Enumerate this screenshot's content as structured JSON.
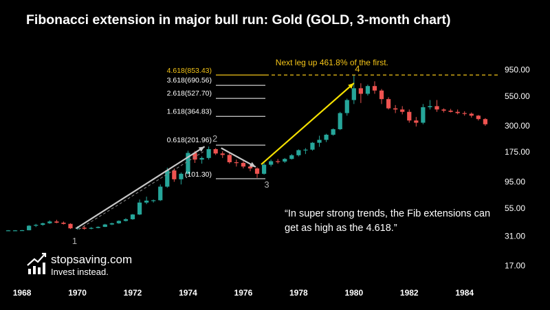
{
  "title": "Fibonacci extension in major bull run: Gold (GOLD, 3-month chart)",
  "brand": {
    "name": "stopsaving.com",
    "tagline": "Invest instead."
  },
  "quote": "“In super strong trends, the Fib extensions can get as high as the 4.618.”",
  "colors": {
    "background": "#000000",
    "up": "#26a69a",
    "down": "#ef5350",
    "arrow_white": "#c8c8c8",
    "arrow_yellow": "#f5e000",
    "target": "#f5c518"
  },
  "chart_data": {
    "type": "candlestick",
    "title": "Fibonacci extension in major bull run: Gold (GOLD, 3-month chart)",
    "y_scale": "log",
    "ylim": [
      14,
      1150
    ],
    "xlim": [
      1967.5,
      1985.3
    ],
    "x_ticks": [
      "1968",
      "1970",
      "1972",
      "1974",
      "1976",
      "1978",
      "1980",
      "1982",
      "1984"
    ],
    "y_ticks": [
      "950.00",
      "550.00",
      "300.00",
      "175.00",
      "95.00",
      "55.00",
      "31.00",
      "17.00"
    ],
    "candles": [
      [
        1967.5,
        35,
        35.2,
        34.8,
        35
      ],
      [
        1967.75,
        35,
        35.2,
        34.8,
        35
      ],
      [
        1968.0,
        35,
        35.3,
        34.8,
        35.1
      ],
      [
        1968.25,
        35.1,
        39,
        35,
        38.5
      ],
      [
        1968.5,
        38.5,
        40,
        37.5,
        39.2
      ],
      [
        1968.75,
        39.2,
        41,
        38.5,
        40.5
      ],
      [
        1969.0,
        40.5,
        43,
        40,
        42
      ],
      [
        1969.25,
        42,
        43.5,
        40.5,
        41
      ],
      [
        1969.5,
        41,
        42,
        39.5,
        40
      ],
      [
        1969.75,
        40,
        40.5,
        36,
        36.5
      ],
      [
        1970.0,
        36.5,
        38,
        35.5,
        37
      ],
      [
        1970.25,
        37,
        38,
        35.5,
        36.2
      ],
      [
        1970.5,
        36.2,
        37.5,
        35.8,
        36.8
      ],
      [
        1970.75,
        36.8,
        38,
        36.5,
        37.6
      ],
      [
        1971.0,
        37.6,
        40,
        37.5,
        39.5
      ],
      [
        1971.25,
        39.5,
        41,
        39,
        40.5
      ],
      [
        1971.5,
        40.5,
        43,
        40,
        42.5
      ],
      [
        1971.75,
        42.5,
        45,
        42,
        44
      ],
      [
        1972.0,
        44,
        49,
        43.5,
        48.5
      ],
      [
        1972.25,
        48.5,
        66,
        48,
        62
      ],
      [
        1972.5,
        62,
        70,
        60,
        64.5
      ],
      [
        1972.75,
        64.5,
        66,
        62,
        65
      ],
      [
        1973.0,
        65,
        90,
        64,
        86
      ],
      [
        1973.25,
        86,
        127,
        84,
        120
      ],
      [
        1973.5,
        120,
        125,
        95,
        100
      ],
      [
        1973.75,
        100,
        115,
        90,
        112
      ],
      [
        1974.0,
        112,
        180,
        110,
        172
      ],
      [
        1974.25,
        172,
        179,
        140,
        150
      ],
      [
        1974.5,
        150,
        160,
        138,
        155
      ],
      [
        1974.75,
        155,
        196,
        150,
        186
      ],
      [
        1975.0,
        186,
        190,
        165,
        170
      ],
      [
        1975.25,
        170,
        178,
        155,
        165
      ],
      [
        1975.5,
        165,
        172,
        138,
        142
      ],
      [
        1975.75,
        142,
        150,
        130,
        140
      ],
      [
        1976.0,
        140,
        145,
        125,
        130
      ],
      [
        1976.25,
        130,
        135,
        118,
        125
      ],
      [
        1976.5,
        125,
        128,
        103,
        112
      ],
      [
        1976.75,
        112,
        140,
        110,
        135
      ],
      [
        1977.0,
        135,
        150,
        130,
        145
      ],
      [
        1977.25,
        145,
        152,
        138,
        144
      ],
      [
        1977.5,
        144,
        155,
        140,
        152
      ],
      [
        1977.75,
        152,
        168,
        150,
        164
      ],
      [
        1978.0,
        164,
        185,
        160,
        182
      ],
      [
        1978.25,
        182,
        190,
        168,
        184
      ],
      [
        1978.5,
        184,
        215,
        180,
        212
      ],
      [
        1978.75,
        212,
        245,
        195,
        225
      ],
      [
        1979.0,
        225,
        255,
        215,
        250
      ],
      [
        1979.25,
        250,
        285,
        245,
        280
      ],
      [
        1979.5,
        280,
        400,
        275,
        390
      ],
      [
        1979.75,
        390,
        525,
        370,
        510
      ],
      [
        1980.0,
        510,
        850,
        470,
        650
      ],
      [
        1980.25,
        650,
        720,
        480,
        580
      ],
      [
        1980.5,
        580,
        700,
        560,
        680
      ],
      [
        1980.75,
        680,
        750,
        580,
        620
      ],
      [
        1981.0,
        620,
        640,
        470,
        520
      ],
      [
        1981.25,
        520,
        540,
        420,
        430
      ],
      [
        1981.5,
        430,
        460,
        390,
        420
      ],
      [
        1981.75,
        420,
        450,
        380,
        400
      ],
      [
        1982.0,
        400,
        420,
        320,
        335
      ],
      [
        1982.25,
        335,
        360,
        296,
        320
      ],
      [
        1982.5,
        320,
        470,
        310,
        440
      ],
      [
        1982.75,
        440,
        510,
        420,
        450
      ],
      [
        1983.0,
        450,
        510,
        400,
        420
      ],
      [
        1983.25,
        420,
        430,
        395,
        410
      ],
      [
        1983.5,
        410,
        425,
        395,
        400
      ],
      [
        1983.75,
        400,
        420,
        380,
        390
      ],
      [
        1984.0,
        390,
        405,
        370,
        385
      ],
      [
        1984.25,
        385,
        395,
        355,
        370
      ],
      [
        1984.5,
        370,
        375,
        335,
        345
      ],
      [
        1984.75,
        345,
        352,
        300,
        310
      ]
    ],
    "fib_levels": [
      {
        "label": "4.618(853.43)",
        "ratio": 4.618,
        "value": 853.43,
        "highlight": true
      },
      {
        "label": "3.618(690.56)",
        "ratio": 3.618,
        "value": 690.56
      },
      {
        "label": "2.618(527.70)",
        "ratio": 2.618,
        "value": 527.7
      },
      {
        "label": "1.618(364.83)",
        "ratio": 1.618,
        "value": 364.83
      },
      {
        "label": "0.618(201.96)",
        "ratio": 0.618,
        "value": 201.96
      },
      {
        "label": "(101.30)",
        "ratio": 0,
        "value": 101.3
      }
    ],
    "points": [
      {
        "label": "1",
        "x": 1969.9,
        "y": 35
      },
      {
        "label": "2",
        "x": 1974.9,
        "y": 196
      },
      {
        "label": "3",
        "x": 1976.5,
        "y": 103
      },
      {
        "label": "4",
        "x": 1980.1,
        "y": 850
      }
    ],
    "annotations": [
      {
        "text": "Next leg up 461.8% of the first.",
        "x": 1980.1,
        "y": 1010
      }
    ]
  }
}
